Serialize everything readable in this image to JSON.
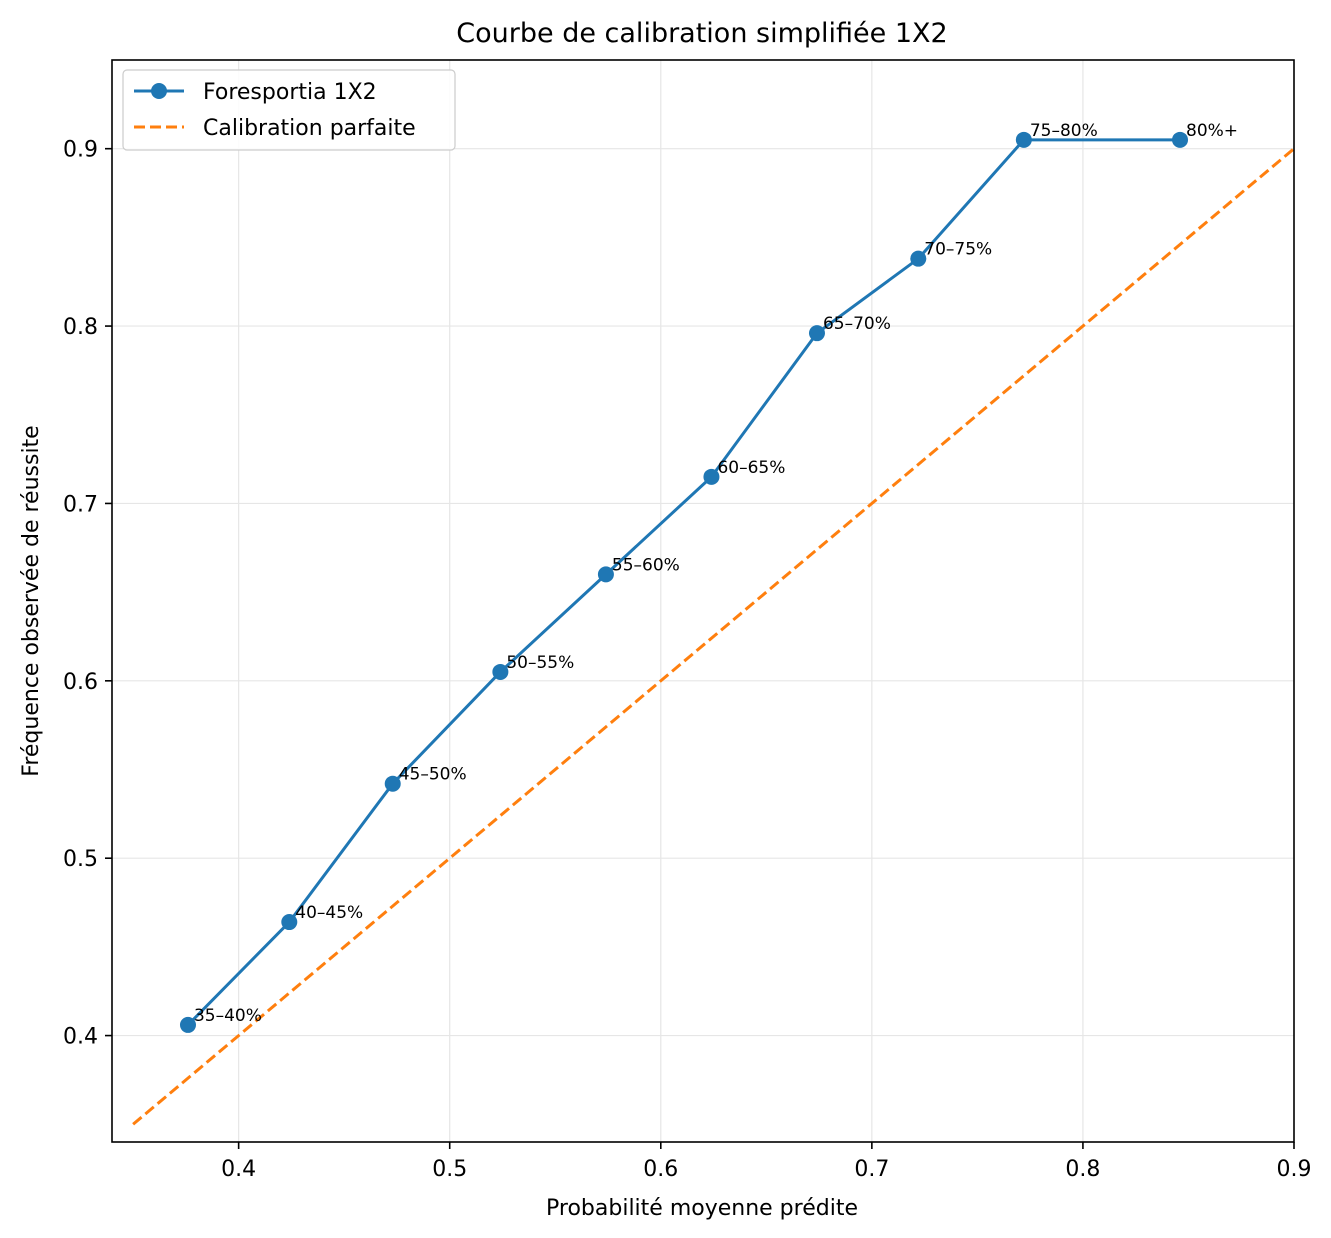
{
  "chart_data": {
    "type": "line",
    "title": "Courbe de calibration simplifiée 1X2",
    "xlabel": "Probabilité moyenne prédite",
    "ylabel": "Fréquence observée de réussite",
    "xlim": [
      0.34,
      0.9
    ],
    "ylim": [
      0.34,
      0.95
    ],
    "xticks": [
      "0.4",
      "0.5",
      "0.6",
      "0.7",
      "0.8",
      "0.9"
    ],
    "yticks": [
      "0.4",
      "0.5",
      "0.6",
      "0.7",
      "0.8",
      "0.9"
    ],
    "grid": true,
    "legend_position": "top-left",
    "series": [
      {
        "name": "Foresportia 1X2",
        "color": "#1f77b4",
        "style": "solid-with-markers",
        "x": [
          0.376,
          0.424,
          0.473,
          0.524,
          0.574,
          0.624,
          0.674,
          0.722,
          0.772,
          0.846
        ],
        "y": [
          0.406,
          0.464,
          0.542,
          0.605,
          0.66,
          0.715,
          0.796,
          0.838,
          0.905,
          0.905
        ],
        "labels": [
          "35–40%",
          "40–45%",
          "45–50%",
          "50–55%",
          "55–60%",
          "60–65%",
          "65–70%",
          "70–75%",
          "75–80%",
          "80%+"
        ]
      },
      {
        "name": "Calibration parfaite",
        "color": "#ff7f0e",
        "style": "dashed",
        "x": [
          0.35,
          0.9
        ],
        "y": [
          0.35,
          0.9
        ]
      }
    ]
  }
}
